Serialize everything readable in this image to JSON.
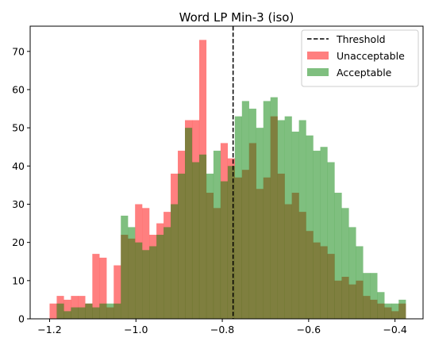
{
  "chart_data": {
    "type": "histogram",
    "title": "Word LP Min-3 (iso)",
    "xlabel": "",
    "ylabel": "",
    "xlim": [
      -1.245,
      -0.335
    ],
    "ylim": [
      0,
      76.6
    ],
    "x_ticks": [
      -1.2,
      -1.0,
      -0.8,
      -0.6,
      -0.4
    ],
    "x_tick_labels": [
      "−1.2",
      "−1.0",
      "−0.8",
      "−0.6",
      "−0.4"
    ],
    "y_ticks": [
      0,
      10,
      20,
      30,
      40,
      50,
      60,
      70
    ],
    "y_tick_labels": [
      "0",
      "10",
      "20",
      "30",
      "40",
      "50",
      "60",
      "70"
    ],
    "threshold": {
      "name": "Threshold",
      "x": -0.775,
      "color": "#000000",
      "style": "dashed"
    },
    "bin_start": -1.2,
    "bin_width": 0.0165,
    "series": [
      {
        "name": "Unacceptable",
        "color": "#ff0000",
        "alpha": 0.5,
        "values": [
          4,
          6,
          5,
          6,
          6,
          4,
          17,
          16,
          3,
          14,
          22,
          21,
          30,
          29,
          22,
          25,
          28,
          38,
          44,
          52,
          52,
          73,
          33,
          29,
          46,
          42,
          37,
          39,
          46,
          34,
          37,
          53,
          38,
          30,
          33,
          28,
          23,
          20,
          19,
          17,
          10,
          11,
          9,
          10,
          6,
          5,
          4,
          3,
          2,
          4
        ]
      },
      {
        "name": "Acceptable",
        "color": "#008000",
        "alpha": 0.5,
        "values": [
          0,
          4,
          2,
          3,
          3,
          4,
          3,
          4,
          4,
          4,
          27,
          24,
          20,
          18,
          19,
          22,
          24,
          30,
          38,
          50,
          41,
          43,
          38,
          44,
          36,
          40,
          53,
          57,
          55,
          50,
          57,
          58,
          52,
          53,
          49,
          52,
          48,
          44,
          45,
          41,
          33,
          29,
          24,
          19,
          12,
          12,
          7,
          4,
          4,
          5
        ]
      }
    ],
    "legend": {
      "position": "top-right",
      "entries": [
        "Threshold",
        "Unacceptable",
        "Acceptable"
      ]
    },
    "grid": false
  }
}
